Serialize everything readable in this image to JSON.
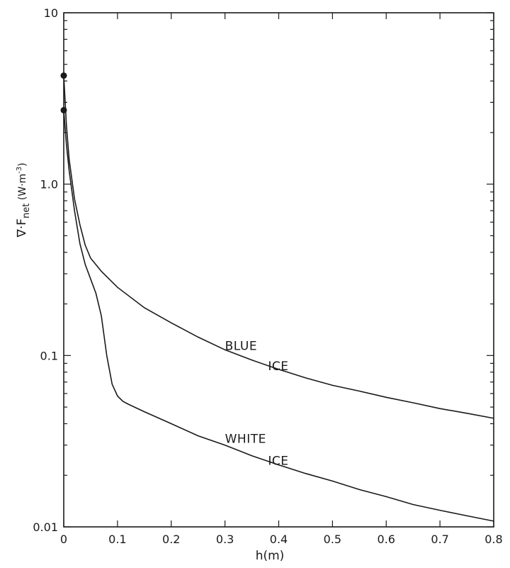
{
  "chart_data": {
    "type": "line",
    "title": "",
    "xlabel": "h(m)",
    "ylabel": "∇·F_net (W·m⁻³)",
    "ylabel_parts": {
      "main": "∇·F",
      "sub": "net",
      "unit_pre": " (W·m",
      "unit_sup": "-3",
      "unit_post": ")"
    },
    "xlim": [
      0,
      0.8
    ],
    "ylim": [
      0.01,
      10
    ],
    "yscale": "log",
    "grid": false,
    "x_ticks": [
      0,
      0.1,
      0.2,
      0.3,
      0.4,
      0.5,
      0.6,
      0.7,
      0.8
    ],
    "x_tick_labels": [
      "0",
      "0.1",
      "0.2",
      "0.3",
      "0.4",
      "0.5",
      "0.6",
      "0.7",
      "0.8"
    ],
    "y_ticks": [
      0.01,
      0.1,
      1,
      10
    ],
    "y_tick_labels": [
      "0.01",
      "0.1",
      "1.0",
      "10"
    ],
    "series": [
      {
        "name": "BLUE ICE",
        "label_lines": [
          "BLUE",
          "ICE"
        ],
        "x": [
          0,
          0.005,
          0.01,
          0.02,
          0.03,
          0.04,
          0.05,
          0.07,
          0.1,
          0.15,
          0.2,
          0.25,
          0.3,
          0.35,
          0.4,
          0.45,
          0.5,
          0.55,
          0.6,
          0.65,
          0.7,
          0.75,
          0.8
        ],
        "y": [
          4.3,
          2.2,
          1.4,
          0.82,
          0.58,
          0.44,
          0.37,
          0.31,
          0.25,
          0.19,
          0.155,
          0.128,
          0.108,
          0.094,
          0.083,
          0.074,
          0.067,
          0.062,
          0.057,
          0.053,
          0.049,
          0.046,
          0.043
        ]
      },
      {
        "name": "WHITE ICE",
        "label_lines": [
          "WHITE",
          "ICE"
        ],
        "x": [
          0,
          0.005,
          0.01,
          0.02,
          0.03,
          0.04,
          0.05,
          0.06,
          0.07,
          0.08,
          0.09,
          0.1,
          0.11,
          0.12,
          0.15,
          0.2,
          0.25,
          0.3,
          0.35,
          0.4,
          0.45,
          0.5,
          0.55,
          0.6,
          0.65,
          0.7,
          0.75,
          0.8
        ],
        "y": [
          2.7,
          1.7,
          1.2,
          0.7,
          0.45,
          0.34,
          0.28,
          0.23,
          0.17,
          0.1,
          0.068,
          0.058,
          0.054,
          0.052,
          0.047,
          0.04,
          0.034,
          0.03,
          0.026,
          0.023,
          0.0205,
          0.0185,
          0.0165,
          0.015,
          0.0135,
          0.0125,
          0.0116,
          0.0108
        ]
      }
    ]
  }
}
